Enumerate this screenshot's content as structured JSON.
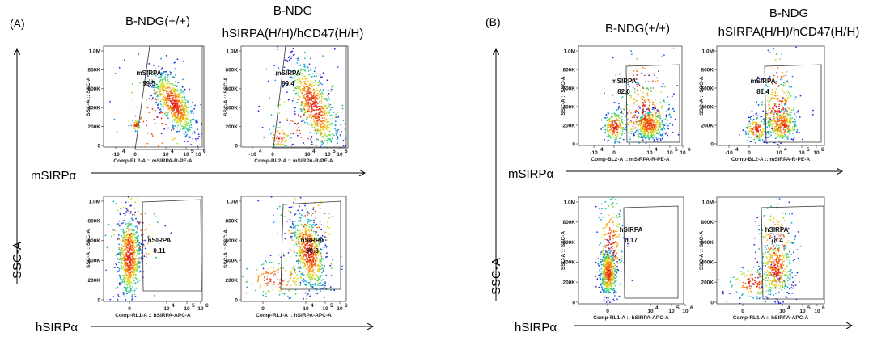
{
  "figure": {
    "panels": [
      {
        "label": "(A)",
        "col_titles": [
          [
            "B-NDG(+/+)"
          ],
          [
            "B-NDG",
            "hSIRPA(H/H)/hCD47(H/H)"
          ]
        ],
        "y_big_label": "SSC-A",
        "row_big_labels": [
          "mSIRPα",
          "hSIRPα"
        ]
      },
      {
        "label": "(B)",
        "col_titles": [
          [
            "B-NDG(+/+)"
          ],
          [
            "B-NDG",
            "hSIRPA(H/H)/hCD47(H/H)"
          ]
        ],
        "y_big_label": "SSC-A",
        "row_big_labels": [
          "mSIRPα",
          "hSIRPα"
        ]
      }
    ]
  },
  "chart_data": [
    {
      "type": "scatter",
      "panel": "A",
      "row": "mSIRPa",
      "column": "B-NDG(+/+)",
      "ylabel": "SSC-A :: SSC-A",
      "xlabel": "Comp-BL2-A :: mSIRPA-R-PE-A",
      "gate_name": "mSIRPA",
      "gate_value": "99.5",
      "xtick_mantissa": [
        "-10",
        "0",
        "10",
        "10",
        "10"
      ],
      "xtick_exp": [
        "4",
        "",
        "4",
        "5",
        "6"
      ],
      "yticks": [
        "1.0M",
        "800K",
        "600K",
        "400K",
        "200K",
        "0"
      ]
    },
    {
      "type": "scatter",
      "panel": "A",
      "row": "mSIRPa",
      "column": "B-NDG hSIRPA(H/H)/hCD47(H/H)",
      "ylabel": "SSC-A :: SSC-A",
      "xlabel": "Comp-BL2-A :: mSIRPA-R-PE-A",
      "gate_name": "mSIRPA",
      "gate_value": "99.4",
      "xtick_mantissa": [
        "-10",
        "0",
        "10",
        "10",
        "10"
      ],
      "xtick_exp": [
        "4",
        "",
        "4",
        "5",
        "6"
      ],
      "yticks": [
        "1.0M",
        "800K",
        "600K",
        "400K",
        "200K",
        "0"
      ]
    },
    {
      "type": "scatter",
      "panel": "A",
      "row": "hSIRPa",
      "column": "B-NDG(+/+)",
      "ylabel": "SSC-A :: SSC-A",
      "xlabel": "Comp-RL1-A :: hSIRPA-APC-A",
      "gate_name": "hSIRPA",
      "gate_value": "0.11",
      "xtick_mantissa": [
        "0",
        "10",
        "10",
        "10"
      ],
      "xtick_exp": [
        "",
        "4",
        "5",
        "6"
      ],
      "yticks": [
        "1.0M",
        "800K",
        "600K",
        "400K",
        "200K",
        "0"
      ]
    },
    {
      "type": "scatter",
      "panel": "A",
      "row": "hSIRPa",
      "column": "B-NDG hSIRPA(H/H)/hCD47(H/H)",
      "ylabel": "SSC-A :: SSC-A",
      "xlabel": "Comp-RL1-A :: hSIRPA-APC-A",
      "gate_name": "hSIRPA",
      "gate_value": "98.3",
      "xtick_mantissa": [
        "0",
        "10",
        "10",
        "10"
      ],
      "xtick_exp": [
        "",
        "4",
        "5",
        "6"
      ],
      "yticks": [
        "1.0M",
        "800K",
        "600K",
        "400K",
        "200K",
        "0"
      ]
    },
    {
      "type": "scatter",
      "panel": "B",
      "row": "mSIRPa",
      "column": "B-NDG(+/+)",
      "ylabel": "SSC-A :: SSC-A",
      "xlabel": "Comp-BL2-A :: mSIRPA-R-PE-A",
      "gate_name": "mSIRPA",
      "gate_value": "82.0",
      "xtick_mantissa": [
        "-10",
        "0",
        "10",
        "10",
        "10"
      ],
      "xtick_exp": [
        "4",
        "",
        "4",
        "5",
        "6"
      ],
      "yticks": [
        "1.0M",
        "800K",
        "600K",
        "400K",
        "200K",
        "0"
      ]
    },
    {
      "type": "scatter",
      "panel": "B",
      "row": "mSIRPa",
      "column": "B-NDG hSIRPA(H/H)/hCD47(H/H)",
      "ylabel": "SSC-A :: SSC-A",
      "xlabel": "Comp-BL2-A :: mSIRPA-R-PE-A",
      "gate_name": "mSIRPA",
      "gate_value": "81.4",
      "xtick_mantissa": [
        "-10",
        "0",
        "10",
        "10",
        "10"
      ],
      "xtick_exp": [
        "4",
        "",
        "4",
        "5",
        "6"
      ],
      "yticks": [
        "1.0M",
        "800K",
        "600K",
        "400K",
        "200K",
        "0"
      ]
    },
    {
      "type": "scatter",
      "panel": "B",
      "row": "hSIRPa",
      "column": "B-NDG(+/+)",
      "ylabel": "SSC-A :: SSC-A",
      "xlabel": "Comp-RL1-A :: hSIRPA-APC-A",
      "gate_name": "hSIRPA",
      "gate_value": "0.17",
      "xtick_mantissa": [
        "0",
        "10",
        "10",
        "10"
      ],
      "xtick_exp": [
        "",
        "4",
        "5",
        "6"
      ],
      "yticks": [
        "1.0M",
        "800K",
        "600K",
        "400K",
        "200K",
        "0"
      ]
    },
    {
      "type": "scatter",
      "panel": "B",
      "row": "hSIRPa",
      "column": "B-NDG hSIRPA(H/H)/hCD47(H/H)",
      "ylabel": "SSC-A :: SSC-A",
      "xlabel": "Comp-RL1-A :: hSIRPA-APC-A",
      "gate_name": "hSIRPA",
      "gate_value": "78.4",
      "xtick_mantissa": [
        "0",
        "10",
        "10",
        "10"
      ],
      "xtick_exp": [
        "",
        "4",
        "5",
        "6"
      ],
      "yticks": [
        "1.0M",
        "800K",
        "600K",
        "400K",
        "200K",
        "0"
      ]
    }
  ]
}
